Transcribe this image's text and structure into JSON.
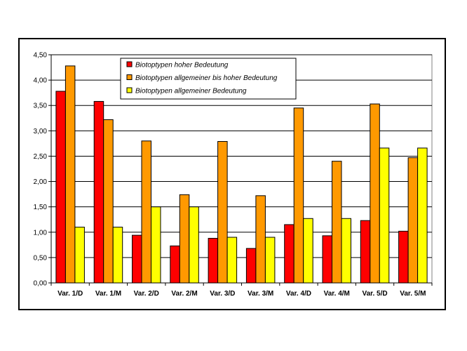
{
  "chart_data": {
    "type": "bar",
    "categories": [
      "Var. 1/D",
      "Var. 1/M",
      "Var. 2/D",
      "Var. 2/M",
      "Var. 3/D",
      "Var. 3/M",
      "Var. 4/D",
      "Var. 4/M",
      "Var. 5/D",
      "Var. 5/M"
    ],
    "series": [
      {
        "name": "Biotoptypen hoher Bedeutung",
        "color": "#ff0000",
        "values": [
          3.78,
          3.58,
          0.94,
          0.73,
          0.88,
          0.68,
          1.15,
          0.93,
          1.23,
          1.02
        ]
      },
      {
        "name": "Biotoptypen allgemeiner bis hoher Bedeutung",
        "color": "#ff9900",
        "values": [
          4.28,
          3.22,
          2.8,
          1.74,
          2.79,
          1.72,
          3.45,
          2.4,
          3.53,
          2.47
        ]
      },
      {
        "name": "Biotoptypen allgemeiner Bedeutung",
        "color": "#ffff00",
        "values": [
          1.1,
          1.1,
          1.5,
          1.5,
          0.9,
          0.9,
          1.27,
          1.27,
          2.66,
          2.66
        ]
      }
    ],
    "y_ticks": [
      "0,00",
      "0,50",
      "1,00",
      "1,50",
      "2,00",
      "2,50",
      "3,00",
      "3,50",
      "4,00",
      "4,50"
    ],
    "ylim": [
      0,
      4.5
    ],
    "y_step": 0.5,
    "grid": true,
    "legend_position": "top-left inside plot",
    "plot_background": "#ffffff",
    "bar_outline": "#000000"
  }
}
